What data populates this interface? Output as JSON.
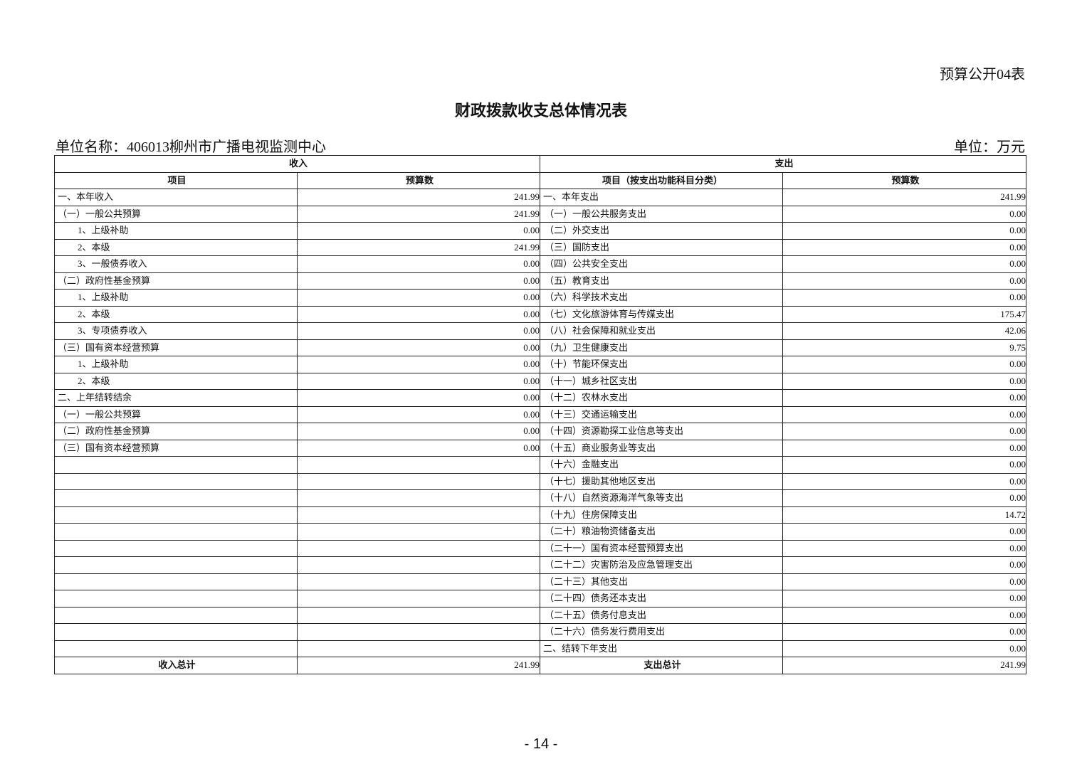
{
  "form_number": "预算公开04表",
  "title": "财政拨款收支总体情况表",
  "unit_name": "单位名称：406013柳州市广播电视监测中心",
  "unit": "单位：万元",
  "table": {
    "group_headers": [
      "收入",
      "支出"
    ],
    "column_headers": [
      "项目",
      "预算数",
      "项目（按支出功能科目分类）",
      "预算数"
    ],
    "rows": [
      [
        "一、本年收入",
        "241.99",
        "一、本年支出",
        "241.99"
      ],
      [
        "（一）一般公共预算",
        "241.99",
        "（一）一般公共服务支出",
        "0.00"
      ],
      [
        "1、上级补助",
        "0.00",
        "（二）外交支出",
        "0.00"
      ],
      [
        "2、本级",
        "241.99",
        "（三）国防支出",
        "0.00"
      ],
      [
        "3、一般债券收入",
        "0.00",
        "（四）公共安全支出",
        "0.00"
      ],
      [
        "（二）政府性基金预算",
        "0.00",
        "（五）教育支出",
        "0.00"
      ],
      [
        "1、上级补助",
        "0.00",
        "（六）科学技术支出",
        "0.00"
      ],
      [
        "2、本级",
        "0.00",
        "（七）文化旅游体育与传媒支出",
        "175.47"
      ],
      [
        "3、专项债券收入",
        "0.00",
        "（八）社会保障和就业支出",
        "42.06"
      ],
      [
        "（三）国有资本经营预算",
        "0.00",
        "（九）卫生健康支出",
        "9.75"
      ],
      [
        "1、上级补助",
        "0.00",
        "（十）节能环保支出",
        "0.00"
      ],
      [
        "2、本级",
        "0.00",
        "（十一）城乡社区支出",
        "0.00"
      ],
      [
        "二、上年结转结余",
        "0.00",
        "（十二）农林水支出",
        "0.00"
      ],
      [
        "（一）一般公共预算",
        "0.00",
        "（十三）交通运输支出",
        "0.00"
      ],
      [
        "（二）政府性基金预算",
        "0.00",
        "（十四）资源勘探工业信息等支出",
        "0.00"
      ],
      [
        "（三）国有资本经营预算",
        "0.00",
        "（十五）商业服务业等支出",
        "0.00"
      ],
      [
        "",
        "",
        "（十六）金融支出",
        "0.00"
      ],
      [
        "",
        "",
        "（十七）援助其他地区支出",
        "0.00"
      ],
      [
        "",
        "",
        "（十八）自然资源海洋气象等支出",
        "0.00"
      ],
      [
        "",
        "",
        "（十九）住房保障支出",
        "14.72"
      ],
      [
        "",
        "",
        "（二十）粮油物资储备支出",
        "0.00"
      ],
      [
        "",
        "",
        "（二十一）国有资本经营预算支出",
        "0.00"
      ],
      [
        "",
        "",
        "（二十二）灾害防治及应急管理支出",
        "0.00"
      ],
      [
        "",
        "",
        "（二十三）其他支出",
        "0.00"
      ],
      [
        "",
        "",
        "（二十四）债务还本支出",
        "0.00"
      ],
      [
        "",
        "",
        "（二十五）债务付息支出",
        "0.00"
      ],
      [
        "",
        "",
        "（二十六）债务发行费用支出",
        "0.00"
      ],
      [
        "",
        "",
        "二、结转下年支出",
        "0.00"
      ]
    ],
    "total_row": [
      "收入总计",
      "241.99",
      "支出总计",
      "241.99"
    ]
  },
  "page_number": "- 14 -"
}
